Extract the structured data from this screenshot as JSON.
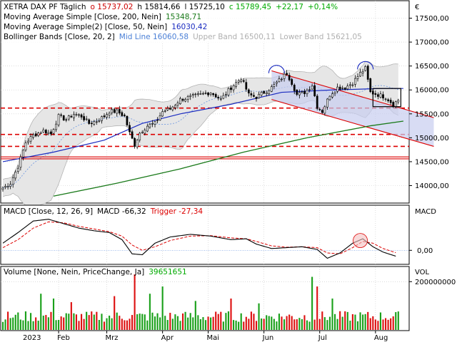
{
  "currency": "€",
  "year_label": "2023",
  "chart_data": [
    {
      "type": "candlestick",
      "panel": "price",
      "legend": [
        {
          "label": "XETRA DAX PF  Täglich",
          "values": [
            {
              "text": "o 15737,02",
              "color": "#cc0000"
            },
            {
              "text": "h 15814,66",
              "color": "#000000"
            },
            {
              "text": "l 15725,10",
              "color": "#000000"
            },
            {
              "text": "c 15789,45",
              "color": "#00aa00"
            },
            {
              "text": "+22,17",
              "color": "#00aa00"
            },
            {
              "text": "+0,14%",
              "color": "#00aa00"
            }
          ]
        },
        {
          "label": "Moving Average Simple  [Close, 200, Nein]",
          "values": [
            {
              "text": "15348,71",
              "color": "#1a7a1a"
            }
          ]
        },
        {
          "label": "Moving Average Simple(2)  [Close, 50, Nein]",
          "values": [
            {
              "text": "16030,42",
              "color": "#1a2bc0"
            }
          ]
        },
        {
          "label": "Bollinger Bands  [Close, 20, 2]",
          "values": [
            {
              "text": "Mid Line 16060,58",
              "color": "#4a7fd6"
            },
            {
              "text": "Upper Band 16500,11",
              "color": "#b0b0b0"
            },
            {
              "text": "Lower Band 15621,05",
              "color": "#b0b0b0"
            }
          ]
        }
      ],
      "ylim": [
        13650,
        17850
      ],
      "yticks": [
        "17500,00",
        "17000,00",
        "16500,00",
        "16000,00",
        "15500,00",
        "15000,00",
        "14500,00",
        "14000,00"
      ],
      "ytick_values": [
        17500,
        17000,
        16500,
        16000,
        15500,
        15000,
        14500,
        14000
      ],
      "x_months": [
        {
          "label": "Feb",
          "day": 22
        },
        {
          "label": "Mrz",
          "day": 41
        },
        {
          "label": "Apr",
          "day": 63
        },
        {
          "label": "Mai",
          "day": 81
        },
        {
          "label": "Jun",
          "day": 103
        },
        {
          "label": "Jul",
          "day": 125
        },
        {
          "label": "Aug",
          "day": 147
        }
      ],
      "days_total": 160,
      "key_points": [
        {
          "day": 0,
          "close": 13950
        },
        {
          "day": 3,
          "close": 14050
        },
        {
          "day": 6,
          "close": 14400
        },
        {
          "day": 9,
          "close": 14900
        },
        {
          "day": 12,
          "close": 15050
        },
        {
          "day": 16,
          "close": 15150
        },
        {
          "day": 19,
          "close": 15080
        },
        {
          "day": 22,
          "close": 15450
        },
        {
          "day": 25,
          "close": 15380
        },
        {
          "day": 28,
          "close": 15500
        },
        {
          "day": 31,
          "close": 15450
        },
        {
          "day": 34,
          "close": 15300
        },
        {
          "day": 37,
          "close": 15350
        },
        {
          "day": 40,
          "close": 15450
        },
        {
          "day": 42,
          "close": 15550
        },
        {
          "day": 45,
          "close": 15550
        },
        {
          "day": 48,
          "close": 15450
        },
        {
          "day": 50,
          "close": 15100
        },
        {
          "day": 52,
          "close": 14850
        },
        {
          "day": 54,
          "close": 15100
        },
        {
          "day": 57,
          "close": 15250
        },
        {
          "day": 60,
          "close": 15300
        },
        {
          "day": 63,
          "close": 15550
        },
        {
          "day": 66,
          "close": 15600
        },
        {
          "day": 70,
          "close": 15800
        },
        {
          "day": 74,
          "close": 15850
        },
        {
          "day": 78,
          "close": 15900
        },
        {
          "day": 82,
          "close": 15950
        },
        {
          "day": 86,
          "close": 15800
        },
        {
          "day": 90,
          "close": 16050
        },
        {
          "day": 94,
          "close": 16250
        },
        {
          "day": 97,
          "close": 15900
        },
        {
          "day": 100,
          "close": 15850
        },
        {
          "day": 103,
          "close": 15950
        },
        {
          "day": 106,
          "close": 16050
        },
        {
          "day": 109,
          "close": 16200
        },
        {
          "day": 112,
          "close": 16350
        },
        {
          "day": 114,
          "close": 16150
        },
        {
          "day": 116,
          "close": 15900
        },
        {
          "day": 119,
          "close": 15950
        },
        {
          "day": 122,
          "close": 16100
        },
        {
          "day": 124,
          "close": 15650
        },
        {
          "day": 126,
          "close": 15550
        },
        {
          "day": 129,
          "close": 15900
        },
        {
          "day": 132,
          "close": 16050
        },
        {
          "day": 135,
          "close": 16050
        },
        {
          "day": 138,
          "close": 16150
        },
        {
          "day": 141,
          "close": 16350
        },
        {
          "day": 143,
          "close": 16450
        },
        {
          "day": 145,
          "close": 15950
        },
        {
          "day": 148,
          "close": 15900
        },
        {
          "day": 151,
          "close": 15850
        },
        {
          "day": 154,
          "close": 15700
        },
        {
          "day": 156,
          "close": 15789
        }
      ],
      "sma200": [
        [
          20,
          13780
        ],
        [
          45,
          14050
        ],
        [
          70,
          14350
        ],
        [
          95,
          14700
        ],
        [
          120,
          15000
        ],
        [
          145,
          15250
        ],
        [
          158,
          15348
        ]
      ],
      "sma50": [
        [
          0,
          14500
        ],
        [
          20,
          14700
        ],
        [
          40,
          14950
        ],
        [
          55,
          15300
        ],
        [
          70,
          15500
        ],
        [
          90,
          15700
        ],
        [
          110,
          15950
        ],
        [
          130,
          16000
        ],
        [
          150,
          16030
        ],
        [
          158,
          16030
        ]
      ],
      "bollinger_width": 420,
      "horizontal_lines": [
        {
          "value": 15620,
          "style": "dashed",
          "color": "#dd0000"
        },
        {
          "value": 15070,
          "style": "dashed",
          "color": "#dd0000"
        },
        {
          "value": 14820,
          "style": "dashed",
          "color": "#dd0000"
        },
        {
          "value": 14600,
          "style": "solid",
          "color": "#dd0000"
        },
        {
          "value": 14560,
          "style": "solid",
          "color": "#dd0000"
        }
      ],
      "trend_channel": {
        "start_day": 106,
        "end_day": 170,
        "upper": [
          16400,
          15420
        ],
        "lower": [
          15800,
          14820
        ],
        "color": "#dd0000"
      },
      "annotations": [
        {
          "type": "arc",
          "day": 108,
          "value": 16350
        },
        {
          "type": "arc",
          "day": 143,
          "value": 16430
        },
        {
          "type": "box",
          "day_from": 146,
          "day_to": 157,
          "value_from": 15650,
          "value_to": 16030
        }
      ]
    },
    {
      "type": "line",
      "panel": "macd",
      "legend": [
        {
          "label": "MACD  [Close, 12, 26, 9]",
          "values": [
            {
              "text": "MACD -66,32",
              "color": "#000000"
            },
            {
              "text": "Trigger -27,34",
              "color": "#dd0000"
            }
          ]
        }
      ],
      "title": "MACD",
      "ylim": [
        -150,
        500
      ],
      "yticks": [
        "0,00"
      ],
      "ytick_values": [
        0
      ],
      "macd": [
        [
          0,
          80
        ],
        [
          6,
          200
        ],
        [
          12,
          330
        ],
        [
          18,
          350
        ],
        [
          24,
          300
        ],
        [
          30,
          250
        ],
        [
          36,
          220
        ],
        [
          42,
          200
        ],
        [
          47,
          120
        ],
        [
          51,
          -40
        ],
        [
          55,
          -50
        ],
        [
          60,
          80
        ],
        [
          66,
          150
        ],
        [
          74,
          180
        ],
        [
          82,
          160
        ],
        [
          90,
          120
        ],
        [
          96,
          130
        ],
        [
          100,
          70
        ],
        [
          106,
          20
        ],
        [
          112,
          30
        ],
        [
          118,
          40
        ],
        [
          124,
          10
        ],
        [
          128,
          -90
        ],
        [
          133,
          -30
        ],
        [
          138,
          80
        ],
        [
          142,
          130
        ],
        [
          146,
          40
        ],
        [
          150,
          -20
        ],
        [
          155,
          -66
        ]
      ],
      "trigger": [
        [
          0,
          30
        ],
        [
          6,
          120
        ],
        [
          12,
          250
        ],
        [
          18,
          320
        ],
        [
          24,
          310
        ],
        [
          30,
          270
        ],
        [
          36,
          240
        ],
        [
          42,
          210
        ],
        [
          47,
          160
        ],
        [
          51,
          60
        ],
        [
          55,
          0
        ],
        [
          60,
          40
        ],
        [
          66,
          110
        ],
        [
          74,
          160
        ],
        [
          82,
          165
        ],
        [
          90,
          140
        ],
        [
          96,
          130
        ],
        [
          100,
          100
        ],
        [
          106,
          50
        ],
        [
          112,
          35
        ],
        [
          118,
          40
        ],
        [
          124,
          30
        ],
        [
          128,
          -30
        ],
        [
          133,
          -40
        ],
        [
          138,
          30
        ],
        [
          142,
          100
        ],
        [
          146,
          80
        ],
        [
          150,
          20
        ],
        [
          155,
          -27
        ]
      ]
    },
    {
      "type": "bar",
      "panel": "volume",
      "legend": [
        {
          "label": "Volume  [None, Nein, PriceChange, Ja]",
          "values": [
            {
              "text": "39651651",
              "color": "#00aa00"
            }
          ]
        }
      ],
      "title": "VOL",
      "ylim": [
        0,
        260000000
      ],
      "yticks": [
        "200000000"
      ],
      "ytick_values": [
        200000000
      ],
      "typical_volume": 60000000,
      "spikes": [
        {
          "day": 15,
          "value": 150000000
        },
        {
          "day": 20,
          "value": 130000000
        },
        {
          "day": 27,
          "value": 115000000
        },
        {
          "day": 44,
          "value": 140000000
        },
        {
          "day": 52,
          "value": 230000000
        },
        {
          "day": 58,
          "value": 150000000
        },
        {
          "day": 63,
          "value": 180000000
        },
        {
          "day": 76,
          "value": 120000000
        },
        {
          "day": 90,
          "value": 130000000
        },
        {
          "day": 101,
          "value": 110000000
        },
        {
          "day": 122,
          "value": 220000000
        },
        {
          "day": 124,
          "value": 180000000
        },
        {
          "day": 130,
          "value": 130000000
        }
      ]
    }
  ]
}
